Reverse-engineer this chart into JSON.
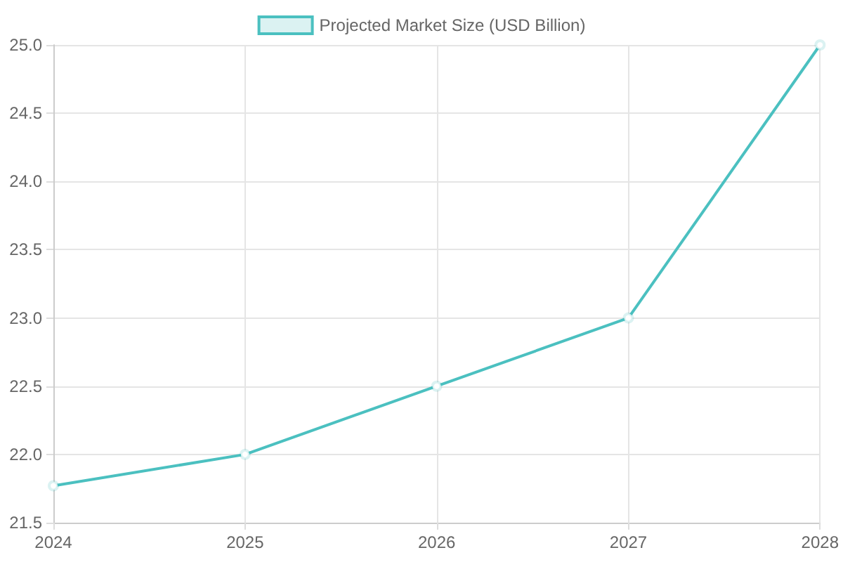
{
  "chart_data": {
    "type": "line",
    "categories": [
      "2024",
      "2025",
      "2026",
      "2027",
      "2028"
    ],
    "series": [
      {
        "name": "Projected Market Size (USD Billion)",
        "color": "#4bc0c0",
        "values": [
          21.77,
          22.0,
          22.5,
          23.0,
          25.0
        ]
      }
    ],
    "ylim": [
      21.5,
      25.0
    ],
    "yticks": [
      {
        "value": 21.5,
        "label": "21.5"
      },
      {
        "value": 22,
        "label": "22.0"
      },
      {
        "value": 22.5,
        "label": "22.5"
      },
      {
        "value": 23,
        "label": "23.0"
      },
      {
        "value": 23.5,
        "label": "23.5"
      },
      {
        "value": 24,
        "label": "24.0"
      },
      {
        "value": 24.5,
        "label": "24.5"
      },
      {
        "value": 25,
        "label": "25.0"
      }
    ],
    "grid": true,
    "legend": "top",
    "marker": "circle",
    "line_style": "solid"
  }
}
